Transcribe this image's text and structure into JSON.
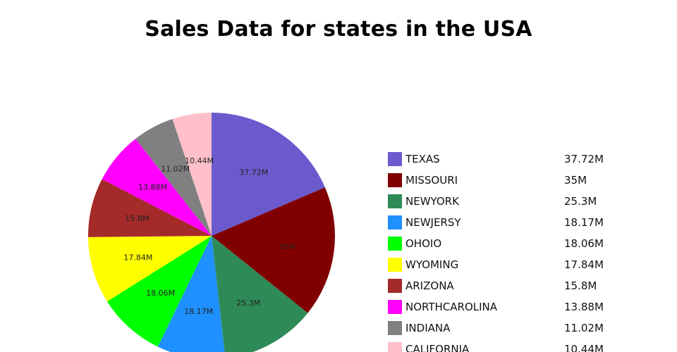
{
  "chart_data": {
    "type": "pie",
    "title": "Sales Data for states in the USA",
    "unit_suffix": "M",
    "categories": [
      "TEXAS",
      "MISSOURI",
      "NEWYORK",
      "NEWJERSY",
      "OHOIO",
      "WYOMING",
      "ARIZONA",
      "NORTHCAROLINA",
      "INDIANA",
      "CALIFORNIA"
    ],
    "values": [
      37.72,
      35,
      25.3,
      18.17,
      18.06,
      17.84,
      15.8,
      13.88,
      11.02,
      10.44
    ],
    "labels": [
      "37.72M",
      "35M",
      "25.3M",
      "18.17M",
      "18.06M",
      "17.84M",
      "15.8M",
      "13.88M",
      "11.02M",
      "10.44M"
    ],
    "colors": [
      "#6a5acd",
      "#800000",
      "#2e8b57",
      "#1e90ff",
      "#00ff00",
      "#ffff00",
      "#a52a2a",
      "#ff00ff",
      "#808080",
      "#ffc0cb"
    ],
    "start_angle": "12 o'clock",
    "direction": "clockwise",
    "legend_position": "right"
  }
}
